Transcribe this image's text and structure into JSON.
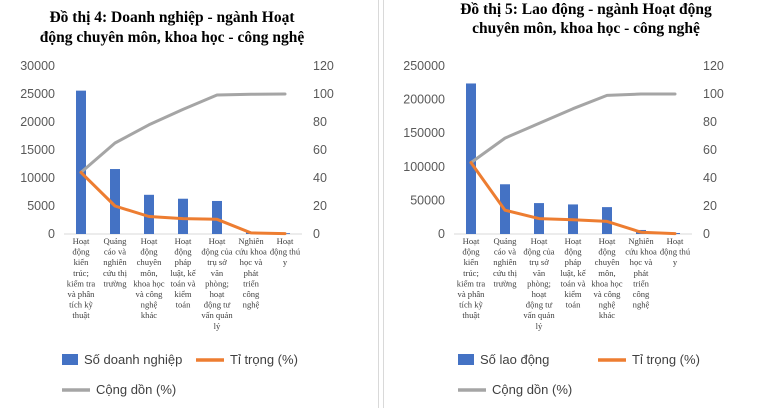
{
  "colors": {
    "bar": "#4472c4",
    "share": "#ed7d31",
    "cumulative": "#a5a5a5"
  },
  "chart_data": [
    {
      "type": "bar",
      "title_lines": [
        "Đồ thị 4: Doanh nghiệp - ngành Hoạt",
        "động chuyên môn, khoa học - công nghệ"
      ],
      "categories": [
        [
          "Hoạt",
          "động",
          "kiến",
          "trúc;",
          "kiểm tra",
          "và phân",
          "tích kỹ",
          "thuật"
        ],
        [
          "Quảng",
          "cáo và",
          "nghiên",
          "cứu thị",
          "trường"
        ],
        [
          "Hoạt",
          "động",
          "chuyên",
          "môn,",
          "khoa học",
          "và công",
          "nghệ",
          "khác"
        ],
        [
          "Hoạt",
          "động",
          "pháp",
          "luật, kế",
          "toán và",
          "kiểm",
          "toán"
        ],
        [
          "Hoạt",
          "động của",
          "trụ sở",
          "văn",
          "phòng;",
          "hoạt",
          "động tư",
          "vấn quản",
          "lý"
        ],
        [
          "Nghiên",
          "cứu khoa",
          "học và",
          "phát",
          "triển",
          "công",
          "nghệ"
        ],
        [
          "Hoạt",
          "động thú",
          "y"
        ]
      ],
      "series": [
        {
          "name": "Số doanh nghiệp",
          "kind": "bar",
          "axis": "left",
          "values": [
            25600,
            11600,
            7000,
            6300,
            5900,
            400,
            150
          ]
        },
        {
          "name": "Tỉ trọng (%)",
          "kind": "line",
          "axis": "right",
          "values": [
            44,
            20,
            12.5,
            11,
            10.5,
            0.8,
            0.3
          ]
        },
        {
          "name": "Cộng dồn (%)",
          "kind": "line",
          "axis": "right",
          "values": [
            44,
            65,
            78,
            89,
            99.3,
            99.8,
            100
          ]
        }
      ],
      "y_left": {
        "min": 0,
        "max": 30000,
        "ticks": [
          "0",
          "5000",
          "10000",
          "15000",
          "20000",
          "25000",
          "30000"
        ]
      },
      "y_right": {
        "min": 0,
        "max": 120,
        "ticks": [
          "0",
          "20",
          "40",
          "60",
          "80",
          "100",
          "120"
        ]
      },
      "legend": [
        "Số doanh nghiệp",
        "Tỉ trọng (%)",
        "Cộng dồn (%)"
      ],
      "legend_position": "bottom",
      "grid": false
    },
    {
      "type": "bar",
      "title_lines": [
        "Đồ thị 5: Lao động - ngành Hoạt động",
        "chuyên môn, khoa học - công nghệ"
      ],
      "categories": [
        [
          "Hoạt",
          "động",
          "kiến",
          "trúc;",
          "kiểm tra",
          "và phân",
          "tích kỹ",
          "thuật"
        ],
        [
          "Quảng",
          "cáo và",
          "nghiên",
          "cứu thị",
          "trường"
        ],
        [
          "Hoạt",
          "động của",
          "trụ sở",
          "văn",
          "phòng;",
          "hoạt",
          "động tư",
          "vấn quản",
          "lý"
        ],
        [
          "Hoạt",
          "động",
          "pháp",
          "luật, kế",
          "toán và",
          "kiểm",
          "toán"
        ],
        [
          "Hoạt",
          "động",
          "chuyên",
          "môn,",
          "khoa học",
          "và công",
          "nghệ",
          "khác"
        ],
        [
          "Nghiên",
          "cứu khoa",
          "học và",
          "phát",
          "triển",
          "công",
          "nghệ"
        ],
        [
          "Hoạt",
          "động thú",
          "y"
        ]
      ],
      "series": [
        {
          "name": "Số lao động",
          "kind": "bar",
          "axis": "left",
          "values": [
            224000,
            74000,
            46000,
            44000,
            40000,
            6000,
            1500
          ]
        },
        {
          "name": "Tỉ trọng (%)",
          "kind": "line",
          "axis": "right",
          "values": [
            51,
            17,
            11,
            10.2,
            9,
            1.3,
            0.3
          ]
        },
        {
          "name": "Cộng dồn (%)",
          "kind": "line",
          "axis": "right",
          "values": [
            51,
            68.5,
            79,
            89.5,
            99,
            100,
            100
          ]
        }
      ],
      "y_left": {
        "min": 0,
        "max": 250000,
        "ticks": [
          "0",
          "50000",
          "100000",
          "150000",
          "200000",
          "250000"
        ]
      },
      "y_right": {
        "min": 0,
        "max": 120,
        "ticks": [
          "0",
          "20",
          "40",
          "60",
          "80",
          "100",
          "120"
        ]
      },
      "legend": [
        "Số lao động",
        "Tỉ trọng (%)",
        "Cộng dồn (%)"
      ],
      "legend_position": "bottom",
      "grid": false
    }
  ]
}
